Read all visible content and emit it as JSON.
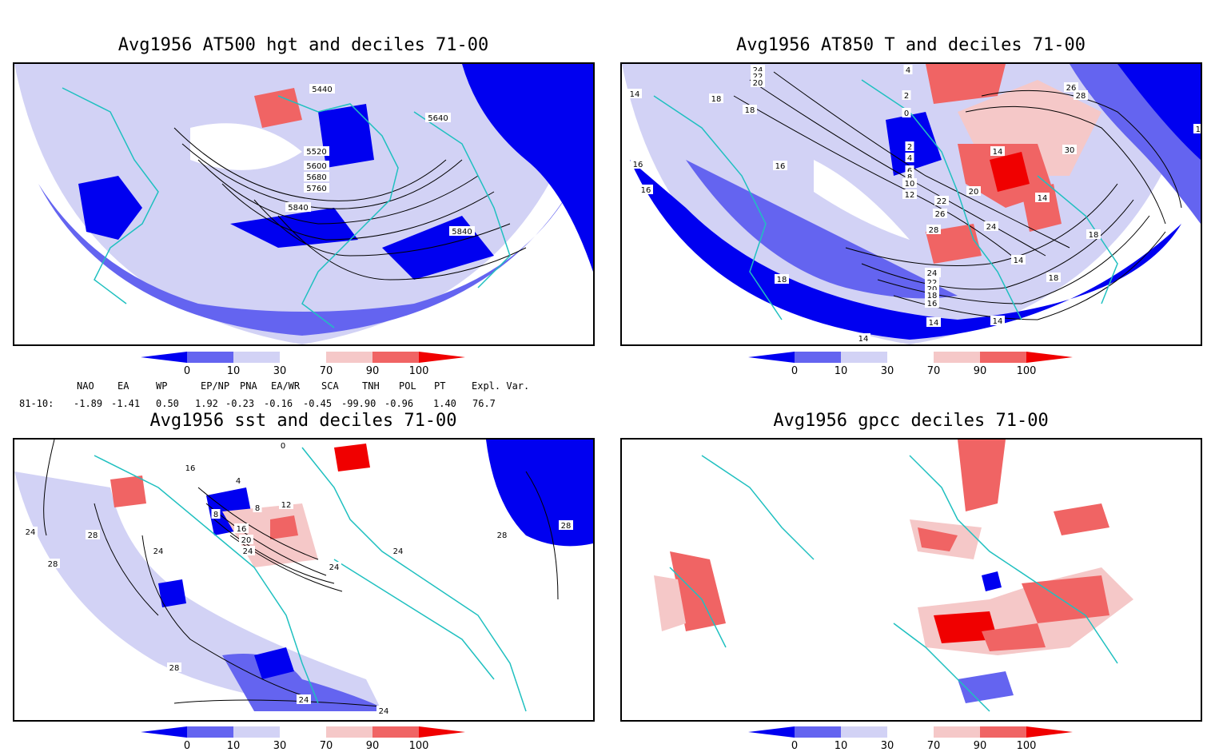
{
  "colors": {
    "decile_0_10": "#0000f0",
    "decile_10_30": "#6464f0",
    "decile_30_70_low": "#d2d2f5",
    "decile_70_90": "#f5c8c8",
    "decile_90_100": "#f06464",
    "decile_100": "#f00000",
    "coast": "#20c0c0",
    "contour": "#000000"
  },
  "panels": [
    {
      "id": "hgt500",
      "title": "Avg1956 AT500 hgt and deciles 71-00",
      "contour_labels": [
        "5440",
        "5640",
        "5520",
        "5600",
        "5680",
        "5760",
        "5840",
        "5840"
      ]
    },
    {
      "id": "t850",
      "title": "Avg1956 AT850 T and deciles 71-00",
      "contour_labels": [
        "24",
        "22",
        "20",
        "4",
        "2",
        "0",
        "14",
        "18",
        "18",
        "26",
        "28",
        "16",
        "16",
        "2",
        "4",
        "6",
        "8",
        "10",
        "12",
        "16",
        "14",
        "30",
        "16",
        "20",
        "22",
        "26",
        "14",
        "28",
        "24",
        "26",
        "18",
        "14",
        "18",
        "24",
        "22",
        "20",
        "18",
        "16",
        "14",
        "14",
        "14",
        "18"
      ]
    },
    {
      "id": "sst",
      "title": "Avg1956 sst and deciles 71-00",
      "contour_labels": [
        "0",
        "16",
        "4",
        "8",
        "12",
        "8",
        "16",
        "20",
        "24",
        "28",
        "28",
        "24",
        "24",
        "24",
        "28",
        "28",
        "24",
        "28",
        "24",
        "24"
      ]
    },
    {
      "id": "gpcc",
      "title": "Avg1956 gpcc deciles 71-00",
      "contour_labels": []
    }
  ],
  "colorbar": {
    "ticks": [
      "0",
      "10",
      "30",
      "70",
      "90",
      "100"
    ]
  },
  "indices": {
    "headers": [
      "NAO",
      "EA",
      "WP",
      "EP/NP",
      "PNA",
      "EA/WR",
      "SCA",
      "TNH",
      "POL",
      "PT",
      "Expl. Var."
    ],
    "row_label": "81-10:",
    "values": [
      "-1.89",
      "-1.41",
      "0.50",
      "1.92",
      "-0.23",
      "-0.16",
      "-0.45",
      "-99.90",
      "-0.96",
      "1.40",
      "76.7"
    ]
  }
}
